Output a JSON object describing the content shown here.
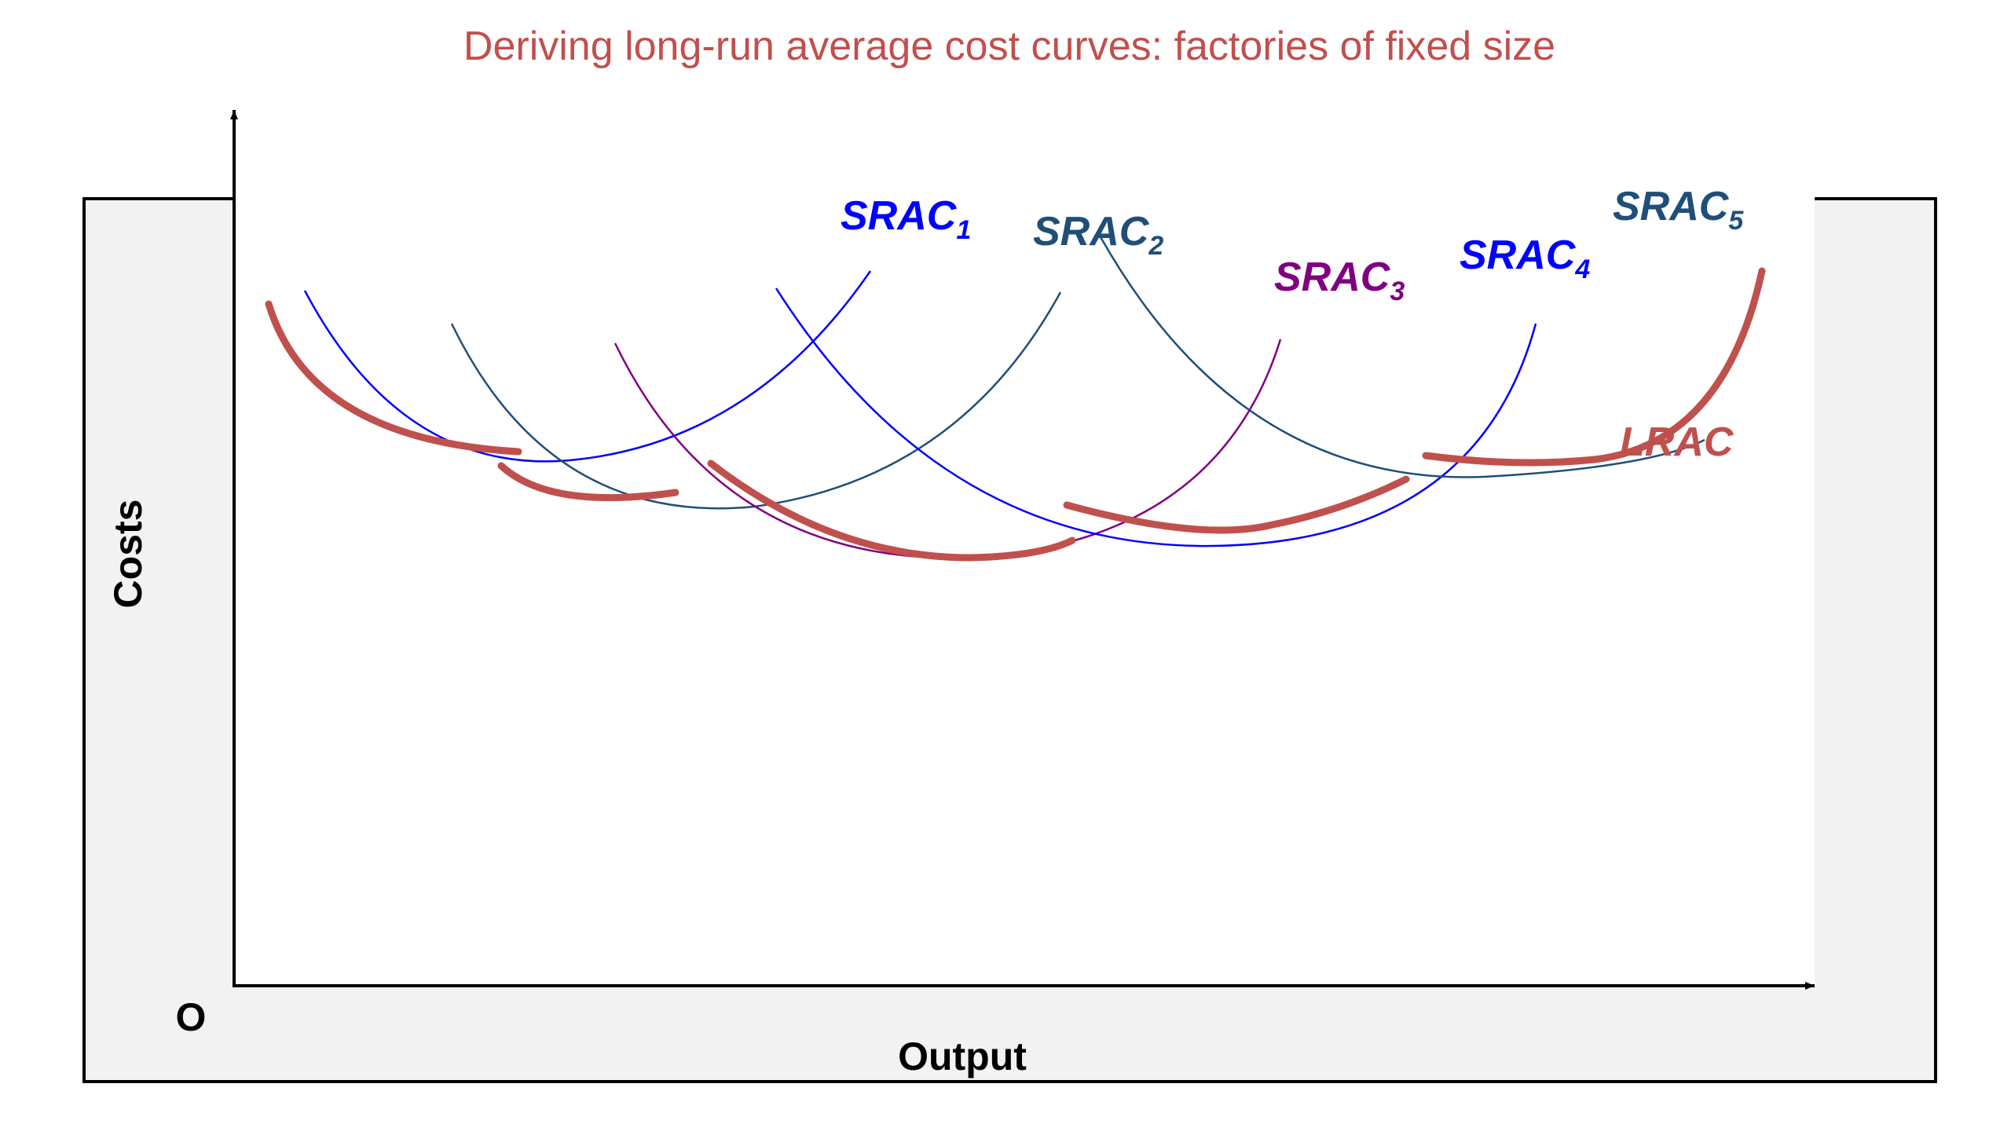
{
  "title": "Deriving long-run average cost curves: factories of fixed size",
  "axes": {
    "y_label": "Costs",
    "x_label": "Output",
    "origin_label": "O"
  },
  "colors": {
    "title": "#c0504d",
    "lrac": "#c0504d",
    "srac1": "#0000ff",
    "srac2": "#1f4e79",
    "srac3": "#800080",
    "srac4": "#0000ff",
    "srac5": "#1f4e79",
    "frame": "#000000",
    "panel": "#f2f2f2"
  },
  "curves": [
    {
      "id": "srac1",
      "base": "SRAC",
      "sub": "1"
    },
    {
      "id": "srac2",
      "base": "SRAC",
      "sub": "2"
    },
    {
      "id": "srac3",
      "base": "SRAC",
      "sub": "3"
    },
    {
      "id": "srac4",
      "base": "SRAC",
      "sub": "4"
    },
    {
      "id": "srac5",
      "base": "SRAC",
      "sub": "5"
    },
    {
      "id": "lrac",
      "base": "LRAC",
      "sub": ""
    }
  ]
}
